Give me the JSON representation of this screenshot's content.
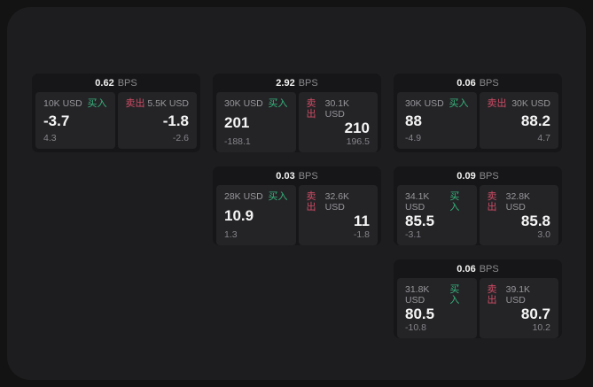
{
  "colors": {
    "buy_green": "#36b57c",
    "sell_red": "#cf4c65",
    "window_bg": "#1d1d1f",
    "card_bg": "#161618",
    "panel_bg": "#242427"
  },
  "labels": {
    "bps_unit": "BPS",
    "buy": "买入",
    "sell": "卖出"
  },
  "cards": [
    {
      "bps": "0.62",
      "buy": {
        "amount": "10K USD",
        "price": "-3.7",
        "delta": "4.3"
      },
      "sell": {
        "amount": "5.5K USD",
        "price": "-1.8",
        "delta": "-2.6"
      }
    },
    {
      "bps": "2.92",
      "buy": {
        "amount": "30K USD",
        "price": "201",
        "delta": "-188.1"
      },
      "sell": {
        "amount": "30.1K USD",
        "price": "210",
        "delta": "196.5"
      }
    },
    {
      "bps": "0.06",
      "buy": {
        "amount": "30K USD",
        "price": "88",
        "delta": "-4.9"
      },
      "sell": {
        "amount": "30K USD",
        "price": "88.2",
        "delta": "4.7"
      }
    },
    {
      "bps": "0.03",
      "buy": {
        "amount": "28K USD",
        "price": "10.9",
        "delta": "1.3"
      },
      "sell": {
        "amount": "32.6K USD",
        "price": "11",
        "delta": "-1.8"
      }
    },
    {
      "bps": "0.09",
      "buy": {
        "amount": "34.1K USD",
        "price": "85.5",
        "delta": "-3.1"
      },
      "sell": {
        "amount": "32.8K USD",
        "price": "85.8",
        "delta": "3.0"
      }
    },
    {
      "bps": "0.06",
      "buy": {
        "amount": "31.8K USD",
        "price": "80.5",
        "delta": "-10.8"
      },
      "sell": {
        "amount": "39.1K USD",
        "price": "80.7",
        "delta": "10.2"
      }
    }
  ]
}
